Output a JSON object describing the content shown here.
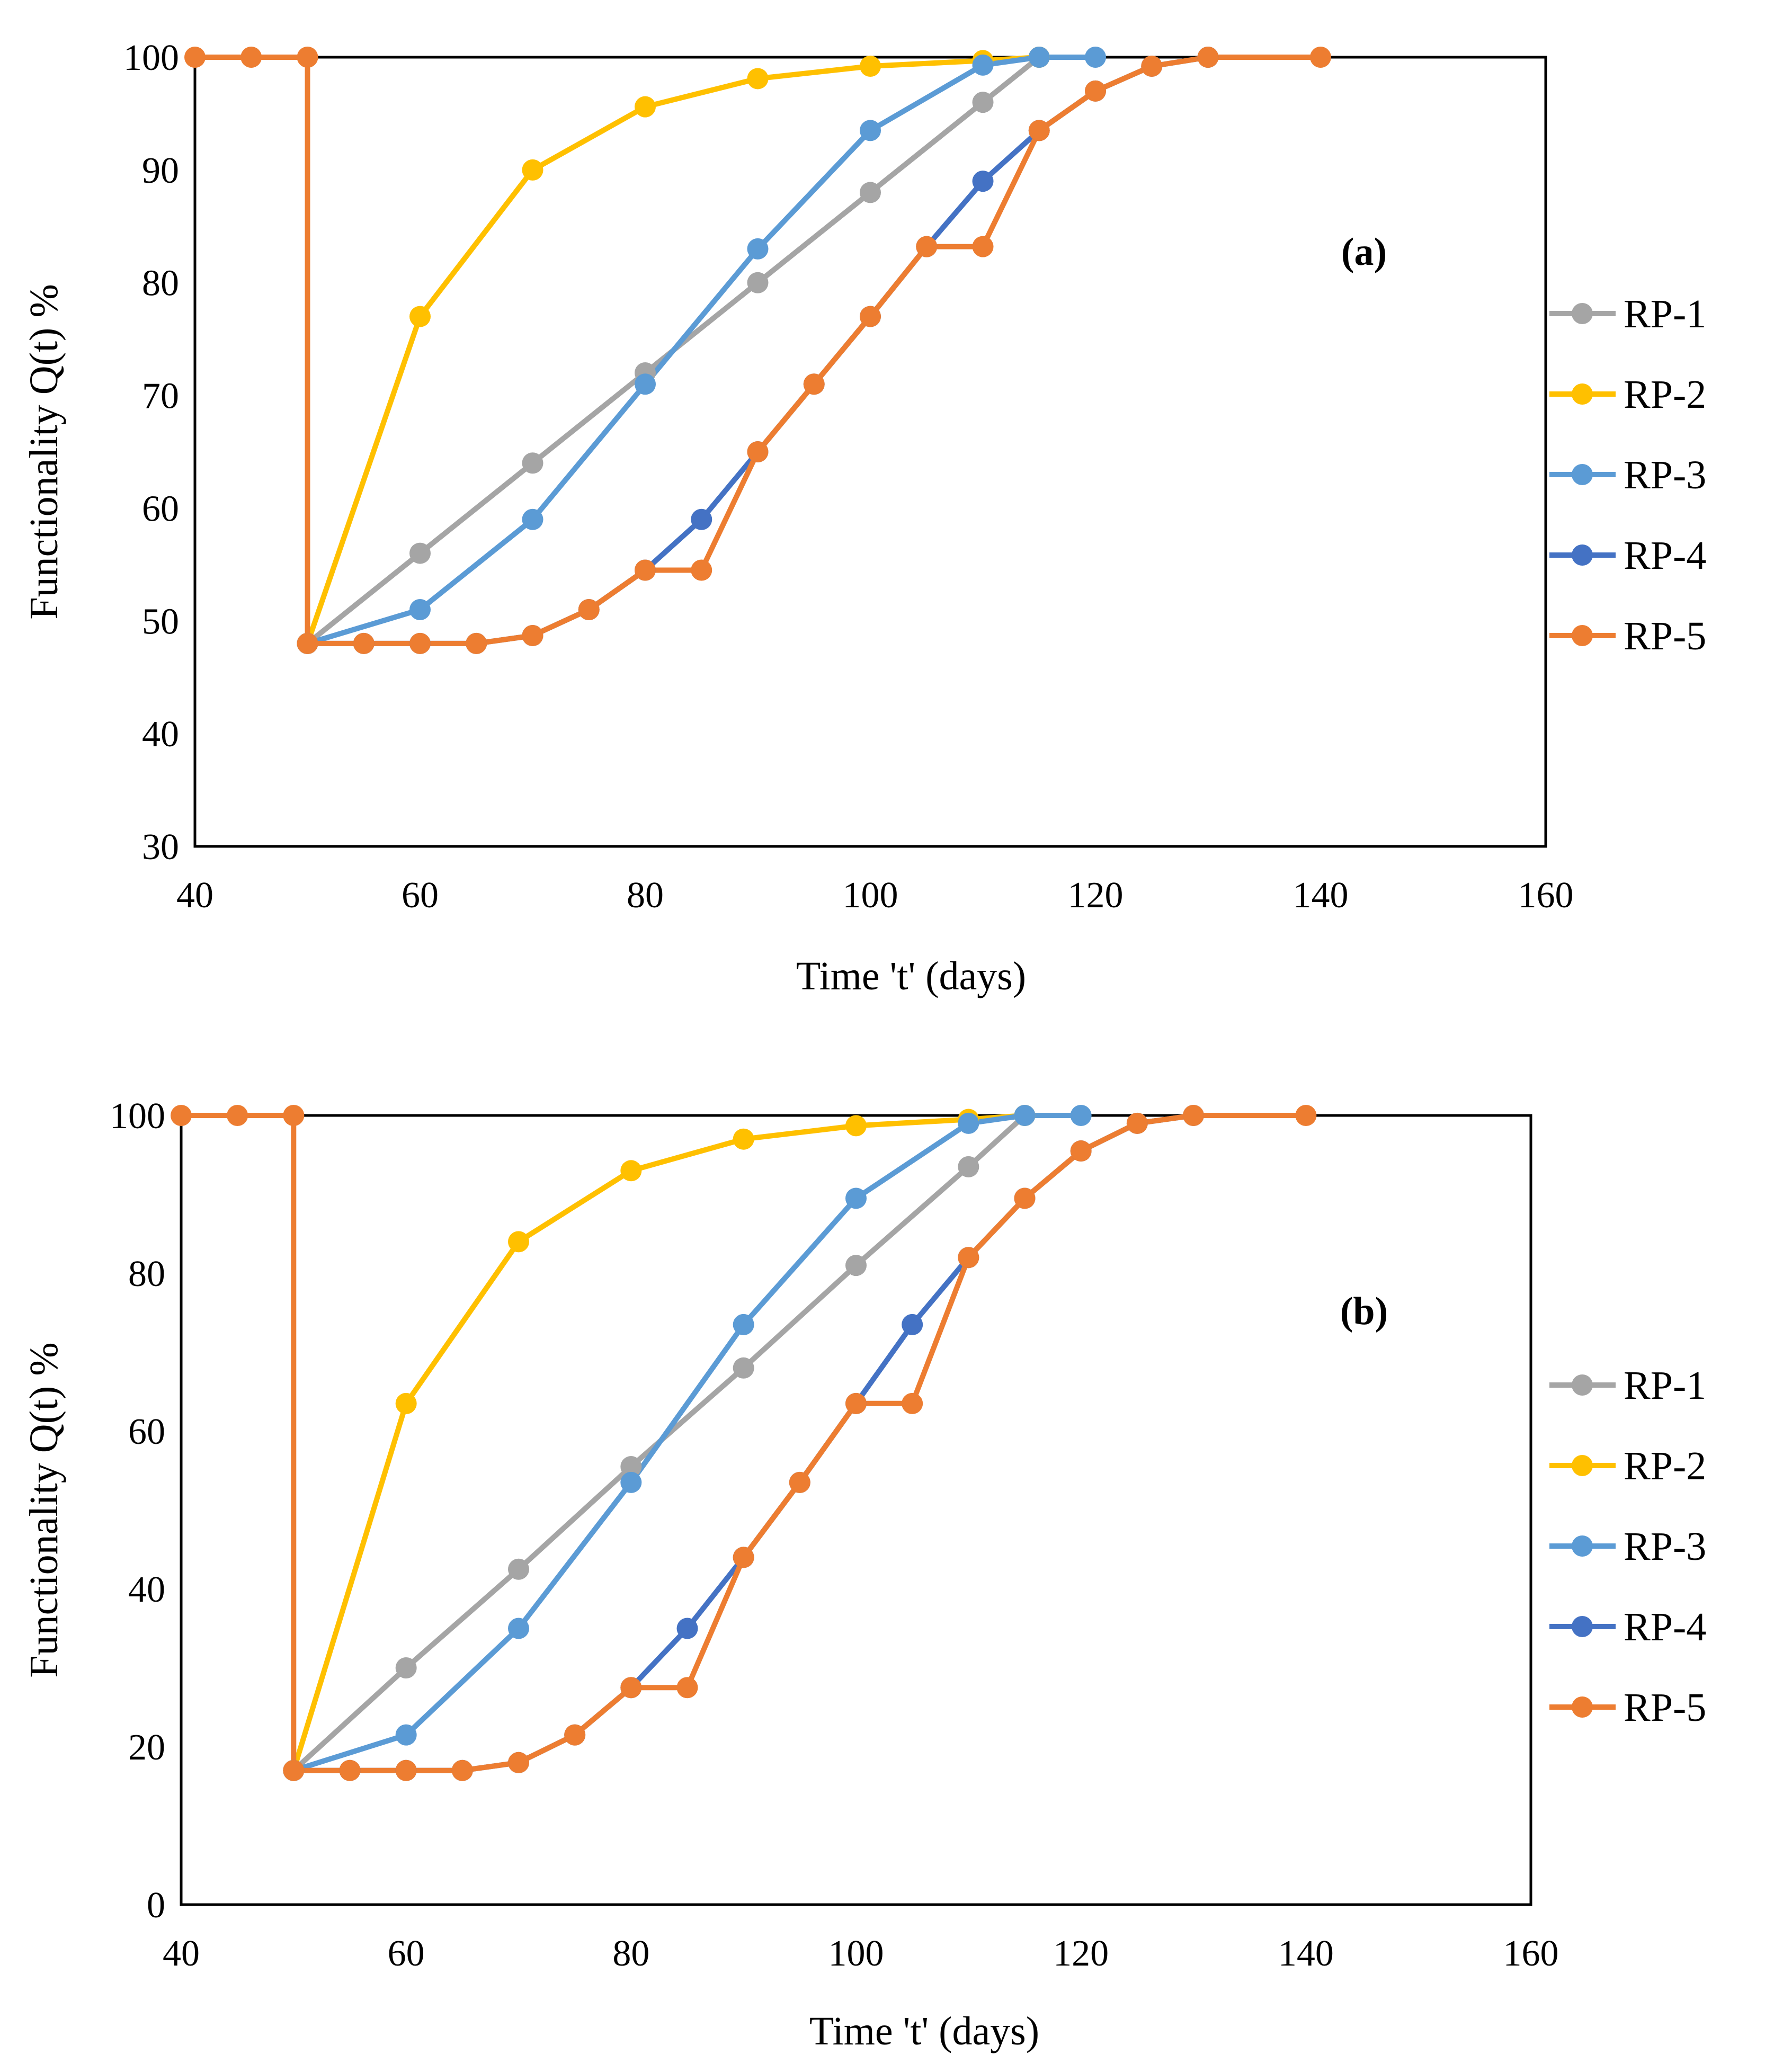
{
  "colors": {
    "RP-1": "#a5a5a5",
    "RP-2": "#ffc000",
    "RP-3": "#5b9bd5",
    "RP-4": "#4472c4",
    "RP-5": "#ed7d31",
    "axis": "#000000"
  },
  "chart_data": [
    {
      "type": "line",
      "panel_label": "(a)",
      "xlabel": "Time 't' (days)",
      "ylabel": "Functionality Q(t) %",
      "xlim": [
        40,
        160
      ],
      "ylim": [
        30,
        100
      ],
      "xticks": [
        "40",
        "60",
        "80",
        "100",
        "120",
        "140",
        "160"
      ],
      "yticks": [
        "30",
        "40",
        "50",
        "60",
        "70",
        "80",
        "90",
        "100"
      ],
      "legend_position": "right",
      "series": [
        {
          "name": "RP-1",
          "x": [
            50,
            60,
            70,
            80,
            90,
            100,
            110,
            115
          ],
          "y": [
            48,
            56,
            64,
            72,
            80,
            88,
            96,
            100
          ]
        },
        {
          "name": "RP-2",
          "x": [
            50,
            60,
            70,
            80,
            90,
            100,
            110,
            115
          ],
          "y": [
            48,
            77,
            90,
            95.6,
            98.1,
            99.2,
            99.7,
            100
          ]
        },
        {
          "name": "RP-3",
          "x": [
            50,
            60,
            70,
            80,
            90,
            100,
            110,
            115,
            120
          ],
          "y": [
            48,
            51,
            59,
            71,
            83,
            93.5,
            99.3,
            100,
            100
          ]
        },
        {
          "name": "RP-4",
          "x": [
            50,
            55,
            60,
            65,
            70,
            75,
            80,
            85,
            90,
            95,
            100,
            105,
            110,
            115,
            120,
            125,
            130
          ],
          "y": [
            48,
            48,
            48,
            48,
            48.7,
            51,
            54.5,
            59,
            65,
            71,
            77,
            83.2,
            89,
            93.5,
            97,
            99.2,
            100
          ]
        },
        {
          "name": "RP-5",
          "x": [
            40,
            45,
            50,
            50,
            55,
            60,
            65,
            70,
            75,
            80,
            85,
            90,
            95,
            100,
            105,
            110,
            115,
            120,
            125,
            130,
            140
          ],
          "y": [
            100,
            100,
            100,
            48,
            48,
            48,
            48,
            48.7,
            51,
            54.5,
            54.5,
            65,
            71,
            77,
            83.2,
            83.2,
            93.5,
            97,
            99.2,
            100,
            100
          ]
        }
      ]
    },
    {
      "type": "line",
      "panel_label": "(b)",
      "xlabel": "Time 't' (days)",
      "ylabel": "Functionality Q(t) %",
      "xlim": [
        40,
        160
      ],
      "ylim": [
        0,
        100
      ],
      "xticks": [
        "40",
        "60",
        "80",
        "100",
        "120",
        "140",
        "160"
      ],
      "yticks": [
        "0",
        "20",
        "40",
        "60",
        "80",
        "100"
      ],
      "legend_position": "right",
      "series": [
        {
          "name": "RP-1",
          "x": [
            50,
            60,
            70,
            80,
            90,
            100,
            110,
            115
          ],
          "y": [
            17,
            30,
            42.5,
            55.5,
            68,
            81,
            93.5,
            100
          ]
        },
        {
          "name": "RP-2",
          "x": [
            50,
            60,
            70,
            80,
            90,
            100,
            110,
            115
          ],
          "y": [
            17,
            63.5,
            84,
            93,
            97,
            98.7,
            99.5,
            100
          ]
        },
        {
          "name": "RP-3",
          "x": [
            50,
            60,
            70,
            80,
            90,
            100,
            110,
            115,
            120
          ],
          "y": [
            17,
            21.5,
            35,
            53.5,
            73.5,
            89.5,
            99,
            100,
            100
          ]
        },
        {
          "name": "RP-4",
          "x": [
            50,
            55,
            60,
            65,
            70,
            75,
            80,
            85,
            90,
            95,
            100,
            105,
            110,
            115,
            120,
            125,
            130
          ],
          "y": [
            17,
            17,
            17,
            17,
            18,
            21.5,
            27.5,
            35,
            44,
            53.5,
            63.5,
            73.5,
            82,
            89.5,
            95.5,
            99,
            100
          ]
        },
        {
          "name": "RP-5",
          "x": [
            40,
            45,
            50,
            50,
            55,
            60,
            65,
            70,
            75,
            80,
            85,
            90,
            95,
            100,
            105,
            110,
            115,
            120,
            125,
            130,
            140
          ],
          "y": [
            100,
            100,
            100,
            17,
            17,
            17,
            17,
            18,
            21.5,
            27.5,
            27.5,
            44,
            53.5,
            63.5,
            63.5,
            82,
            89.5,
            95.5,
            99,
            100,
            100
          ]
        }
      ]
    }
  ]
}
